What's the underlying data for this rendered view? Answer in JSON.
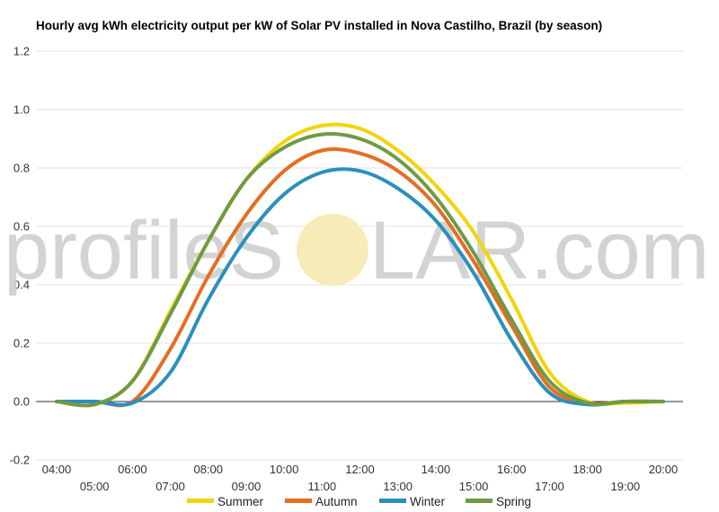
{
  "watermark": {
    "left": "profileS",
    "right": "LAR.com",
    "sun_color": "#f7e9b0"
  },
  "chart_data": {
    "type": "line",
    "title": "Hourly avg kWh electricity output per kW of Solar PV installed in Nova Castilho, Brazil (by season)",
    "xlabel": "",
    "ylabel": "",
    "categories": [
      "04:00",
      "05:00",
      "06:00",
      "07:00",
      "08:00",
      "09:00",
      "10:00",
      "11:00",
      "12:00",
      "13:00",
      "14:00",
      "15:00",
      "16:00",
      "17:00",
      "18:00",
      "19:00",
      "20:00"
    ],
    "x_tick_labels_upper": [
      "04:00",
      "06:00",
      "08:00",
      "10:00",
      "12:00",
      "14:00",
      "16:00",
      "18:00",
      "20:00"
    ],
    "x_tick_labels_lower": [
      "05:00",
      "07:00",
      "09:00",
      "11:00",
      "13:00",
      "15:00",
      "17:00",
      "19:00"
    ],
    "y_ticks": [
      -0.2,
      0.0,
      0.2,
      0.4,
      0.6,
      0.8,
      1.0,
      1.2
    ],
    "y_tick_labels": [
      "-0.2",
      "0.0",
      "0.2",
      "0.4",
      "0.6",
      "0.8",
      "1.0",
      "1.2"
    ],
    "ylim": [
      -0.2,
      1.2
    ],
    "grid": true,
    "legend_position": "bottom",
    "series": [
      {
        "name": "Summer",
        "color": "#f5d30a",
        "values": [
          0.0,
          -0.01,
          0.07,
          0.31,
          0.55,
          0.76,
          0.89,
          0.945,
          0.935,
          0.86,
          0.74,
          0.58,
          0.35,
          0.1,
          0.0,
          -0.005,
          0.0
        ]
      },
      {
        "name": "Autumn",
        "color": "#e46e23",
        "values": [
          0.0,
          0.0,
          0.0,
          0.18,
          0.43,
          0.64,
          0.79,
          0.86,
          0.85,
          0.79,
          0.67,
          0.48,
          0.26,
          0.05,
          -0.005,
          0.0,
          0.0
        ]
      },
      {
        "name": "Winter",
        "color": "#2b8fbd",
        "values": [
          0.0,
          0.0,
          -0.005,
          0.1,
          0.35,
          0.56,
          0.71,
          0.785,
          0.79,
          0.73,
          0.62,
          0.44,
          0.21,
          0.03,
          -0.01,
          0.0,
          0.0
        ]
      },
      {
        "name": "Spring",
        "color": "#6f9a45",
        "values": [
          0.0,
          -0.01,
          0.07,
          0.3,
          0.55,
          0.76,
          0.87,
          0.915,
          0.9,
          0.83,
          0.7,
          0.51,
          0.28,
          0.07,
          -0.005,
          0.0,
          0.0
        ]
      }
    ]
  }
}
